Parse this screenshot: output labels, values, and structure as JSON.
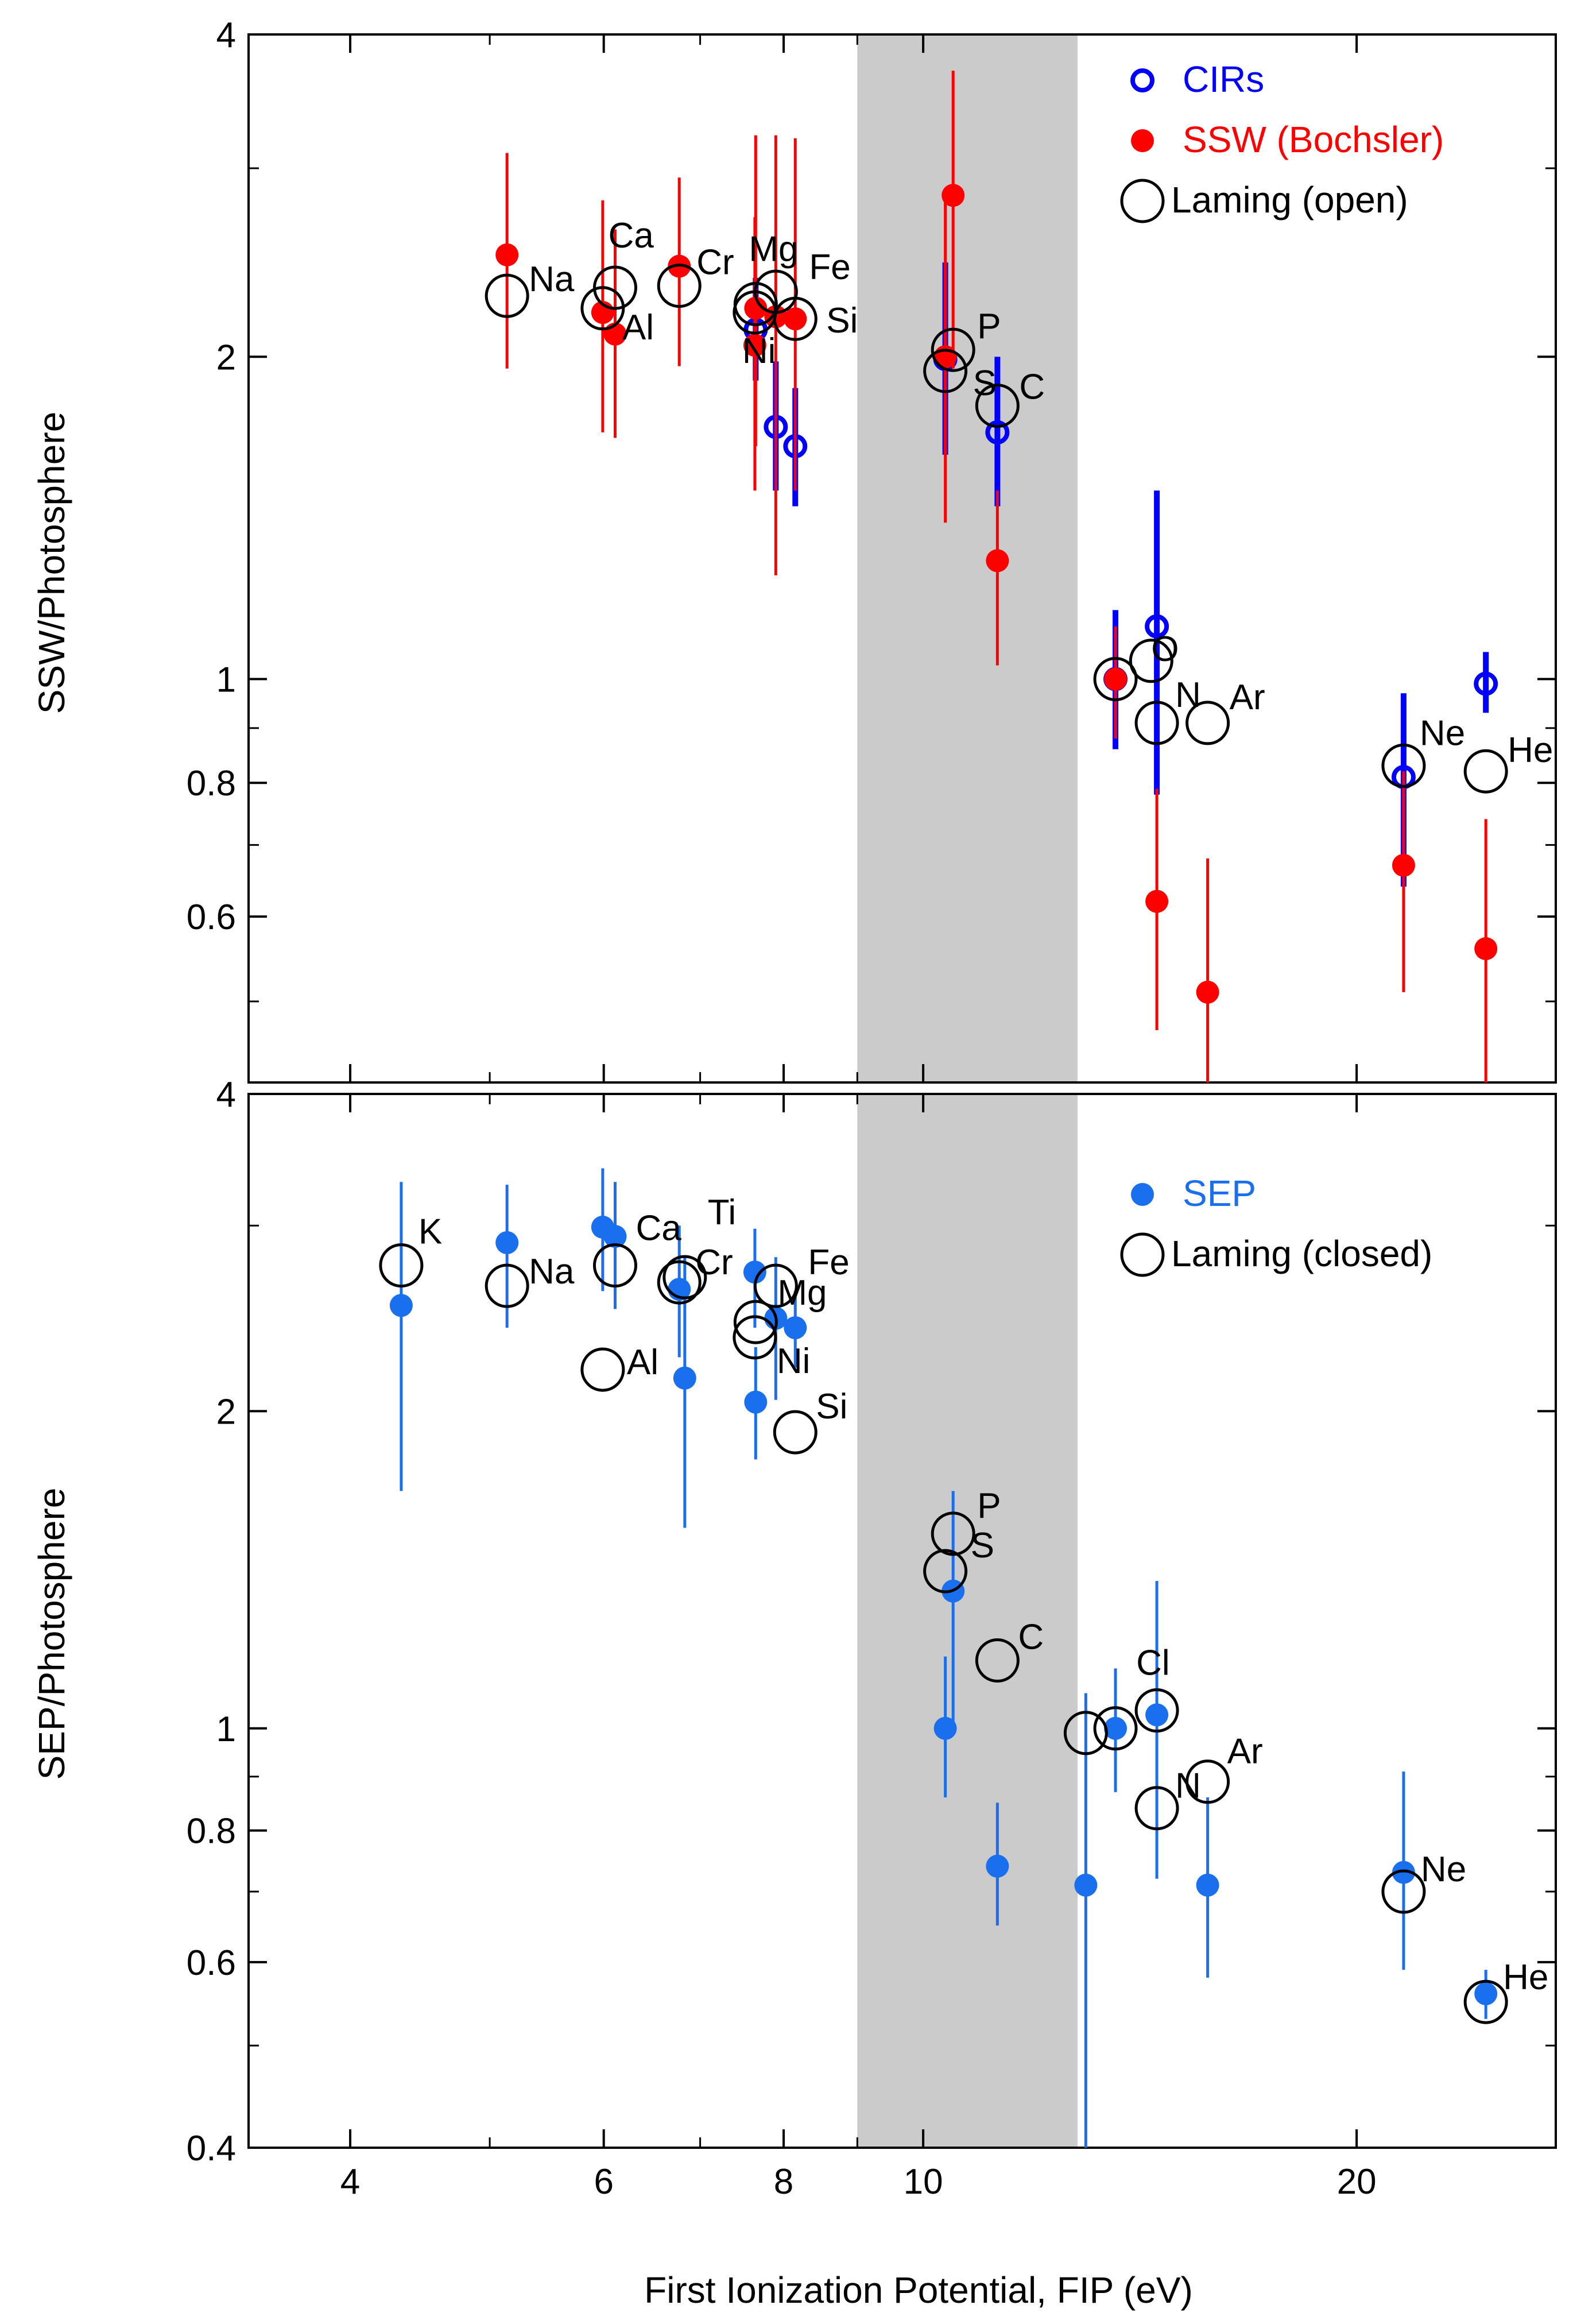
{
  "chart_data": [
    {
      "type": "scatter",
      "panel": "top",
      "ylabel": "SSW/Photosphere",
      "xlabel": "",
      "xscale": "log",
      "yscale": "log",
      "xlim": [
        3.4,
        27.5
      ],
      "ylim": [
        0.42,
        4.0
      ],
      "x_ticks": [
        4,
        6,
        8,
        10,
        20
      ],
      "y_ticks": [
        4,
        2,
        1,
        0.8,
        0.6
      ],
      "shaded_band": [
        9.0,
        12.8
      ],
      "legend": [
        "CIRs",
        "SSW (Bochsler)",
        "Laming (open)"
      ],
      "series": [
        {
          "name": "CIRs",
          "marker": "open-circle-small",
          "color": "#0000ff",
          "points": [
            {
              "x": 7.65,
              "y": 2.12,
              "lo": 1.9,
              "hi": 2.37
            },
            {
              "x": 7.9,
              "y": 1.72,
              "lo": 1.5,
              "hi": 1.98
            },
            {
              "x": 8.15,
              "y": 1.65,
              "lo": 1.45,
              "hi": 1.87
            },
            {
              "x": 10.36,
              "y": 1.99,
              "lo": 1.62,
              "hi": 2.45
            },
            {
              "x": 11.26,
              "y": 1.7,
              "lo": 1.45,
              "hi": 2.0
            },
            {
              "x": 13.6,
              "y": 1.0,
              "lo": 0.86,
              "hi": 1.16
            },
            {
              "x": 14.53,
              "y": 1.12,
              "lo": 0.78,
              "hi": 1.5
            },
            {
              "x": 21.56,
              "y": 0.81,
              "lo": 0.64,
              "hi": 0.97
            },
            {
              "x": 24.59,
              "y": 0.99,
              "lo": 0.93,
              "hi": 1.06
            }
          ]
        },
        {
          "name": "SSW (Bochsler)",
          "marker": "filled-circle",
          "color": "#ff0000",
          "points": [
            {
              "x": 5.14,
              "y": 2.49,
              "lo": 1.95,
              "hi": 3.1
            },
            {
              "x": 5.99,
              "y": 2.2,
              "lo": 1.7,
              "hi": 2.8
            },
            {
              "x": 6.11,
              "y": 2.1,
              "lo": 1.68,
              "hi": 2.63
            },
            {
              "x": 6.77,
              "y": 2.43,
              "lo": 1.96,
              "hi": 2.94
            },
            {
              "x": 7.65,
              "y": 2.22,
              "lo": 1.65,
              "hi": 3.22
            },
            {
              "x": 7.64,
              "y": 2.05,
              "lo": 1.5,
              "hi": 2.7
            },
            {
              "x": 7.9,
              "y": 2.18,
              "lo": 1.25,
              "hi": 3.22
            },
            {
              "x": 8.15,
              "y": 2.17,
              "lo": 1.5,
              "hi": 3.2
            },
            {
              "x": 10.36,
              "y": 2.0,
              "lo": 1.4,
              "hi": 2.8
            },
            {
              "x": 10.49,
              "y": 2.83,
              "lo": 1.95,
              "hi": 3.7
            },
            {
              "x": 11.26,
              "y": 1.29,
              "lo": 1.03,
              "hi": 1.5
            },
            {
              "x": 13.6,
              "y": 1.0,
              "lo": 0.88,
              "hi": 1.12
            },
            {
              "x": 14.53,
              "y": 0.62,
              "lo": 0.47,
              "hi": 0.79
            },
            {
              "x": 15.76,
              "y": 0.51,
              "lo": 0.4,
              "hi": 0.68
            },
            {
              "x": 21.56,
              "y": 0.67,
              "lo": 0.51,
              "hi": 0.82
            },
            {
              "x": 24.59,
              "y": 0.56,
              "lo": 0.42,
              "hi": 0.74
            }
          ]
        },
        {
          "name": "Laming (open)",
          "marker": "open-circle-large",
          "color": "#000000",
          "points": [
            {
              "x": 5.14,
              "y": 2.28,
              "label": "Na"
            },
            {
              "x": 6.11,
              "y": 2.32,
              "label": "Ca"
            },
            {
              "x": 5.99,
              "y": 2.22,
              "label": "Al"
            },
            {
              "x": 6.77,
              "y": 2.33,
              "label": "Cr"
            },
            {
              "x": 7.65,
              "y": 2.24,
              "label": "Mg"
            },
            {
              "x": 7.9,
              "y": 2.3,
              "label": "Fe"
            },
            {
              "x": 8.15,
              "y": 2.17,
              "label": "Si"
            },
            {
              "x": 7.64,
              "y": 2.2,
              "label": "Ni"
            },
            {
              "x": 10.49,
              "y": 2.03,
              "label": "P"
            },
            {
              "x": 10.36,
              "y": 1.94,
              "label": "S"
            },
            {
              "x": 11.26,
              "y": 1.8,
              "label": "C"
            },
            {
              "x": 13.6,
              "y": 1.0,
              "label": ""
            },
            {
              "x": 14.53,
              "y": 0.91,
              "label": "N"
            },
            {
              "x": 14.4,
              "y": 1.04,
              "label": "O"
            },
            {
              "x": 15.76,
              "y": 0.91,
              "label": "Ar"
            },
            {
              "x": 21.56,
              "y": 0.83,
              "label": "Ne"
            },
            {
              "x": 24.59,
              "y": 0.82,
              "label": "He"
            }
          ]
        }
      ]
    },
    {
      "type": "scatter",
      "panel": "bottom",
      "ylabel": "SEP/Photosphere",
      "xlabel": "First Ionization Potential, FIP (eV)",
      "xscale": "log",
      "yscale": "log",
      "xlim": [
        3.4,
        27.5
      ],
      "ylim": [
        0.4,
        4.0
      ],
      "x_ticks": [
        4,
        6,
        8,
        10,
        20
      ],
      "y_ticks": [
        4,
        2,
        1,
        0.8,
        0.6,
        0.4
      ],
      "shaded_band": [
        9.0,
        12.8
      ],
      "legend": [
        "SEP",
        "Laming (closed)"
      ],
      "series": [
        {
          "name": "SEP",
          "marker": "filled-circle",
          "color": "#1a6fef",
          "points": [
            {
              "x": 4.34,
              "y": 2.52,
              "lo": 1.68,
              "hi": 3.3
            },
            {
              "x": 5.14,
              "y": 2.89,
              "lo": 2.4,
              "hi": 3.28
            },
            {
              "x": 5.99,
              "y": 2.99,
              "lo": 2.6,
              "hi": 3.4
            },
            {
              "x": 6.11,
              "y": 2.93,
              "lo": 2.5,
              "hi": 3.3
            },
            {
              "x": 6.77,
              "y": 2.61,
              "lo": 2.25,
              "hi": 3.0
            },
            {
              "x": 6.83,
              "y": 2.15,
              "lo": 1.55,
              "hi": 2.8
            },
            {
              "x": 7.65,
              "y": 2.04,
              "lo": 1.8,
              "hi": 2.3
            },
            {
              "x": 7.64,
              "y": 2.71,
              "lo": 2.4,
              "hi": 2.98
            },
            {
              "x": 7.9,
              "y": 2.45,
              "lo": 2.05,
              "hi": 2.8
            },
            {
              "x": 8.15,
              "y": 2.4,
              "lo": 2.2,
              "hi": 2.6
            },
            {
              "x": 10.36,
              "y": 1.0,
              "lo": 0.86,
              "hi": 1.17
            },
            {
              "x": 10.49,
              "y": 1.35,
              "lo": 1.0,
              "hi": 1.68
            },
            {
              "x": 11.26,
              "y": 0.74,
              "lo": 0.65,
              "hi": 0.85
            },
            {
              "x": 12.97,
              "y": 0.71,
              "lo": 0.4,
              "hi": 1.08
            },
            {
              "x": 13.6,
              "y": 1.0,
              "lo": 0.87,
              "hi": 1.14
            },
            {
              "x": 14.53,
              "y": 1.03,
              "lo": 0.72,
              "hi": 1.38
            },
            {
              "x": 15.76,
              "y": 0.71,
              "lo": 0.58,
              "hi": 0.86
            },
            {
              "x": 21.56,
              "y": 0.73,
              "lo": 0.59,
              "hi": 0.91
            },
            {
              "x": 24.59,
              "y": 0.56,
              "lo": 0.53,
              "hi": 0.59
            }
          ]
        },
        {
          "name": "Laming (closed)",
          "marker": "open-circle-large",
          "color": "#000000",
          "points": [
            {
              "x": 4.34,
              "y": 2.75,
              "label": "K"
            },
            {
              "x": 5.14,
              "y": 2.63,
              "label": "Na"
            },
            {
              "x": 6.11,
              "y": 2.75,
              "label": "Ca"
            },
            {
              "x": 6.83,
              "y": 2.68,
              "label": "Ti"
            },
            {
              "x": 6.77,
              "y": 2.65,
              "label": "Cr"
            },
            {
              "x": 5.99,
              "y": 2.19,
              "label": "Al"
            },
            {
              "x": 7.65,
              "y": 2.43,
              "label": "Mg"
            },
            {
              "x": 7.64,
              "y": 2.35,
              "label": "Ni"
            },
            {
              "x": 7.9,
              "y": 2.63,
              "label": "Fe"
            },
            {
              "x": 8.15,
              "y": 1.91,
              "label": "Si"
            },
            {
              "x": 10.49,
              "y": 1.53,
              "label": "P"
            },
            {
              "x": 10.36,
              "y": 1.41,
              "label": "S"
            },
            {
              "x": 11.26,
              "y": 1.16,
              "label": "C"
            },
            {
              "x": 12.97,
              "y": 0.99,
              "label": ""
            },
            {
              "x": 13.6,
              "y": 1.0,
              "label": ""
            },
            {
              "x": 14.53,
              "y": 0.84,
              "label": "N"
            },
            {
              "x": 14.53,
              "y": 1.04,
              "label": "Cl"
            },
            {
              "x": 15.76,
              "y": 0.89,
              "label": "Ar"
            },
            {
              "x": 21.56,
              "y": 0.7,
              "label": "Ne"
            },
            {
              "x": 24.59,
              "y": 0.55,
              "label": "He"
            }
          ]
        }
      ]
    }
  ]
}
